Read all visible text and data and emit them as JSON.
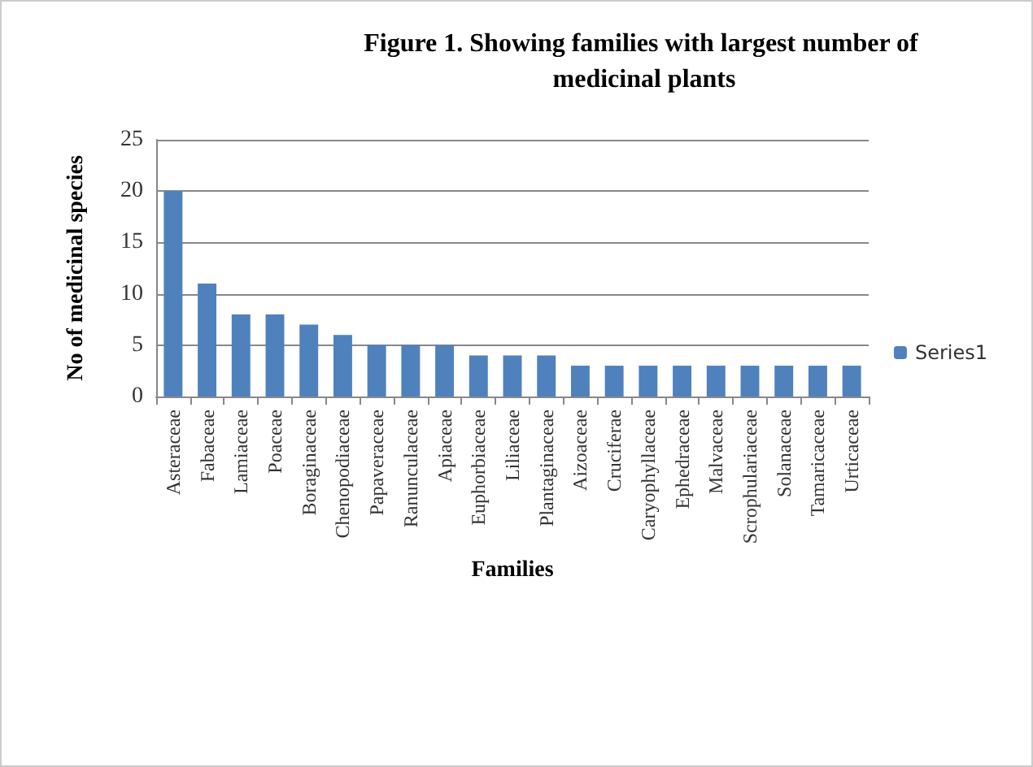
{
  "chart_data": {
    "type": "bar",
    "title": "Figure 1. Showing families with largest number of medicinal plants",
    "xlabel": "Families",
    "ylabel": "No of medicinal species",
    "categories": [
      "Asteraceae",
      "Fabaceae",
      "Lamiaceae",
      "Poaceae",
      "Boraginaceae",
      "Chenopodiaceae",
      "Papaveraceae",
      "Ranunculaceae",
      "Apiaceae",
      "Euphorbiaceae",
      "Liliaceae",
      "Plantaginaceae",
      "Aizoaceae",
      "Cruciferae",
      "Caryophyllaceae",
      "Ephedraceae",
      "Malvaceae",
      "Scrophulariaceae",
      "Solanaceae",
      "Tamaricaceae",
      "Urticaceae"
    ],
    "series": [
      {
        "name": "Series1",
        "color": "#4f81bd",
        "values": [
          20,
          11,
          8,
          8,
          7,
          6,
          5,
          5,
          5,
          4,
          4,
          4,
          3,
          3,
          3,
          3,
          3,
          3,
          3,
          3,
          3
        ]
      }
    ],
    "ylim": [
      0,
      25
    ],
    "yticks": [
      0,
      5,
      10,
      15,
      20,
      25
    ],
    "grid": "y",
    "legend": "right"
  }
}
